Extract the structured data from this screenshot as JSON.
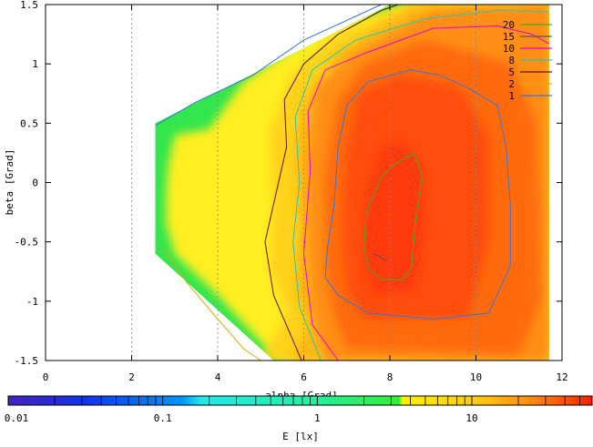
{
  "chart_data": {
    "type": "heatmap",
    "title": "",
    "xlabel": "alpha [Grad]",
    "ylabel": "beta [Grad]",
    "xlim": [
      0,
      12
    ],
    "ylim": [
      1.5,
      -1.5
    ],
    "x_ticks": [
      {
        "value": 0,
        "label": "0"
      },
      {
        "value": 2,
        "label": "2"
      },
      {
        "value": 4,
        "label": "4"
      },
      {
        "value": 6,
        "label": "6"
      },
      {
        "value": 8,
        "label": "8"
      },
      {
        "value": 10,
        "label": "10"
      },
      {
        "value": 12,
        "label": "12"
      }
    ],
    "y_ticks": [
      {
        "value": -1.5,
        "label": "-1.5"
      },
      {
        "value": -1,
        "label": "-1"
      },
      {
        "value": -0.5,
        "label": "-0.5"
      },
      {
        "value": 0,
        "label": "0"
      },
      {
        "value": 0.5,
        "label": "0.5"
      },
      {
        "value": 1,
        "label": "1"
      },
      {
        "value": 1.5,
        "label": "1.5"
      }
    ],
    "grid": true,
    "colorbar": {
      "label": "E [lx]",
      "scale": "log",
      "range": [
        0.01,
        60
      ],
      "ticks": [
        {
          "value": 0.01,
          "label": "0.01"
        },
        {
          "value": 0.1,
          "label": "0.1"
        },
        {
          "value": 1,
          "label": "1"
        },
        {
          "value": 10,
          "label": "10"
        }
      ]
    },
    "region_polygon": [
      [
        2.55,
        -0.6
      ],
      [
        5.3,
        -1.5
      ],
      [
        11.7,
        -1.5
      ],
      [
        11.7,
        1.5
      ],
      [
        8.0,
        1.5
      ],
      [
        2.55,
        0.5
      ]
    ],
    "heat_layers": [
      {
        "level": 1.5,
        "color": "#33e64d",
        "polygon": [
          [
            2.55,
            -0.6
          ],
          [
            5.3,
            -1.5
          ],
          [
            11.7,
            -1.5
          ],
          [
            11.7,
            1.5
          ],
          [
            8.0,
            1.5
          ],
          [
            2.55,
            0.5
          ]
        ]
      },
      {
        "level": 3,
        "color": "#ffee22",
        "polygon": [
          [
            2.8,
            -0.35
          ],
          [
            3.0,
            -0.6
          ],
          [
            4.0,
            -0.95
          ],
          [
            5.4,
            -1.5
          ],
          [
            11.7,
            -1.5
          ],
          [
            11.7,
            1.5
          ],
          [
            8.4,
            1.5
          ],
          [
            6.6,
            1.32
          ],
          [
            5.6,
            1.1
          ],
          [
            4.6,
            0.85
          ],
          [
            3.8,
            0.45
          ],
          [
            3.0,
            0.4
          ],
          [
            2.85,
            0.15
          ],
          [
            2.8,
            -0.1
          ]
        ]
      },
      {
        "level": 4.5,
        "color": "#ffd21c",
        "polygon": [
          [
            5.0,
            -1.5
          ],
          [
            11.7,
            -1.5
          ],
          [
            11.7,
            1.5
          ],
          [
            8.4,
            1.5
          ],
          [
            6.6,
            1.2
          ],
          [
            5.7,
            0.9
          ],
          [
            5.2,
            0.4
          ],
          [
            5.3,
            -0.2
          ],
          [
            5.2,
            -0.7
          ],
          [
            5.6,
            -1.1
          ]
        ]
      },
      {
        "level": 6,
        "color": "#ffb817",
        "polygon": [
          [
            5.7,
            -1.5
          ],
          [
            11.7,
            -1.5
          ],
          [
            11.7,
            1.5
          ],
          [
            8.6,
            1.5
          ],
          [
            6.8,
            1.1
          ],
          [
            5.9,
            0.6
          ],
          [
            5.8,
            0.2
          ],
          [
            5.9,
            -0.4
          ],
          [
            5.8,
            -0.9
          ],
          [
            6.1,
            -1.2
          ]
        ]
      },
      {
        "level": 9,
        "color": "#ff8e12",
        "polygon": [
          [
            6.5,
            -1.5
          ],
          [
            11.7,
            -1.5
          ],
          [
            11.7,
            1.5
          ],
          [
            9.0,
            1.45
          ],
          [
            7.2,
            1.1
          ],
          [
            6.3,
            0.8
          ],
          [
            6.1,
            0.2
          ],
          [
            6.1,
            -0.6
          ],
          [
            6.2,
            -1.1
          ]
        ]
      },
      {
        "level": 12,
        "color": "#ff6a0e",
        "polygon": [
          [
            7.0,
            -1.4
          ],
          [
            11.0,
            -1.45
          ],
          [
            11.5,
            -1.0
          ],
          [
            11.4,
            0.5
          ],
          [
            10.8,
            1.0
          ],
          [
            8.8,
            1.2
          ],
          [
            7.4,
            1.0
          ],
          [
            6.8,
            0.7
          ],
          [
            6.5,
            0.1
          ],
          [
            6.5,
            -0.7
          ],
          [
            6.7,
            -1.1
          ]
        ]
      },
      {
        "level": 18,
        "color": "#ff4e0a",
        "polygon": [
          [
            7.4,
            -1.15
          ],
          [
            9.8,
            -1.15
          ],
          [
            10.3,
            -0.5
          ],
          [
            10.3,
            0.4
          ],
          [
            9.6,
            0.8
          ],
          [
            8.2,
            0.9
          ],
          [
            7.3,
            0.75
          ],
          [
            7.0,
            0.3
          ],
          [
            6.9,
            -0.4
          ],
          [
            7.0,
            -0.9
          ]
        ]
      },
      {
        "level": 25,
        "color": "#ff3a08",
        "polygon": [
          [
            7.6,
            -0.95
          ],
          [
            8.6,
            -0.9
          ],
          [
            8.8,
            -0.4
          ],
          [
            8.8,
            0.1
          ],
          [
            8.3,
            0.35
          ],
          [
            7.8,
            0.3
          ],
          [
            7.45,
            -0.1
          ],
          [
            7.35,
            -0.6
          ]
        ]
      }
    ],
    "contours": [
      {
        "level": 20,
        "label": "20",
        "color": "#44aa22",
        "points": [
          [
            7.5,
            -0.72
          ],
          [
            7.8,
            -0.82
          ],
          [
            8.3,
            -0.82
          ],
          [
            8.5,
            -0.72
          ],
          [
            8.6,
            -0.3
          ],
          [
            8.75,
            0.05
          ],
          [
            8.55,
            0.25
          ],
          [
            8.1,
            0.15
          ],
          [
            7.8,
            0.05
          ],
          [
            7.45,
            -0.25
          ],
          [
            7.4,
            -0.55
          ],
          [
            7.5,
            -0.72
          ]
        ]
      },
      {
        "level": 15,
        "label": "15",
        "color": "#555555",
        "points": [
          [
            7.6,
            -0.6
          ],
          [
            7.75,
            -0.62
          ],
          [
            7.9,
            -0.66
          ]
        ]
      },
      {
        "level": 10,
        "label": "10",
        "color": "#ee00cc",
        "points": [
          [
            6.8,
            -1.5
          ],
          [
            6.2,
            -1.2
          ],
          [
            6.0,
            -0.6
          ],
          [
            6.15,
            0.1
          ],
          [
            6.1,
            0.6
          ],
          [
            6.5,
            0.95
          ],
          [
            7.5,
            1.1
          ],
          [
            9.0,
            1.3
          ],
          [
            10.5,
            1.32
          ],
          [
            11.3,
            1.25
          ],
          [
            11.7,
            1.17
          ]
        ]
      },
      {
        "level": 8,
        "label": "8",
        "color": "#22ccaa",
        "points": [
          [
            6.4,
            -1.5
          ],
          [
            5.9,
            -1.05
          ],
          [
            5.75,
            -0.5
          ],
          [
            5.9,
            0.0
          ],
          [
            5.8,
            0.55
          ],
          [
            6.2,
            0.95
          ],
          [
            7.2,
            1.2
          ],
          [
            8.8,
            1.38
          ],
          [
            10.5,
            1.45
          ],
          [
            11.7,
            1.44
          ]
        ]
      },
      {
        "level": 5,
        "label": "5",
        "color": "#661100",
        "points": [
          [
            5.95,
            -1.5
          ],
          [
            5.3,
            -0.95
          ],
          [
            5.1,
            -0.5
          ],
          [
            5.35,
            -0.1
          ],
          [
            5.6,
            0.3
          ],
          [
            5.55,
            0.7
          ],
          [
            6.0,
            1.0
          ],
          [
            6.8,
            1.25
          ],
          [
            7.8,
            1.45
          ],
          [
            8.2,
            1.5
          ]
        ]
      },
      {
        "level": 2,
        "label": "2",
        "color": "#ddaa00",
        "points": [
          [
            2.7,
            -0.55
          ],
          [
            3.3,
            -0.85
          ],
          [
            4.0,
            -1.15
          ],
          [
            4.6,
            -1.4
          ],
          [
            5.0,
            -1.5
          ]
        ]
      },
      {
        "level": 1,
        "label": "1",
        "color": "#3377dd",
        "points": [
          [
            6.5,
            -0.8
          ],
          [
            6.8,
            -0.95
          ],
          [
            7.5,
            -1.1
          ],
          [
            9.0,
            -1.15
          ],
          [
            10.3,
            -1.1
          ],
          [
            10.8,
            -0.7
          ],
          [
            10.8,
            -0.2
          ],
          [
            10.7,
            0.3
          ],
          [
            10.5,
            0.65
          ],
          [
            9.8,
            0.8
          ],
          [
            9.2,
            0.9
          ],
          [
            8.5,
            0.95
          ],
          [
            7.5,
            0.85
          ],
          [
            7.0,
            0.65
          ],
          [
            6.8,
            0.3
          ],
          [
            6.7,
            -0.2
          ],
          [
            6.55,
            -0.55
          ],
          [
            6.5,
            -0.8
          ]
        ]
      },
      {
        "level": 1,
        "label": "1",
        "color": "#3377dd",
        "points": [
          [
            2.55,
            0.48
          ],
          [
            3.5,
            0.68
          ],
          [
            4.8,
            0.9
          ],
          [
            6.0,
            1.2
          ],
          [
            7.2,
            1.4
          ],
          [
            7.8,
            1.5
          ]
        ]
      }
    ],
    "legend": {
      "placement": "top-right",
      "entries": [
        {
          "label": "20",
          "color": "#44aa22"
        },
        {
          "label": "15",
          "color": "#555555"
        },
        {
          "label": "10",
          "color": "#ee00cc"
        },
        {
          "label": "8",
          "color": "#22ccaa"
        },
        {
          "label": "5",
          "color": "#661100"
        },
        {
          "label": "2",
          "color": "#ddaa00"
        },
        {
          "label": "1",
          "color": "#3377dd"
        }
      ]
    }
  }
}
